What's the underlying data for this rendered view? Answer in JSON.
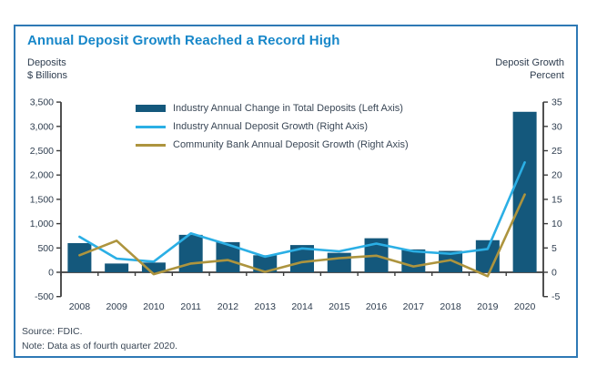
{
  "card": {
    "title": "Annual Deposit Growth Reached a Record High",
    "left_axis_title_line1": "Deposits",
    "left_axis_title_line2": "$ Billions",
    "right_axis_title_line1": "Deposit Growth",
    "right_axis_title_line2": "Percent",
    "source": "Source: FDIC.",
    "note": "Note: Data as of fourth quarter 2020."
  },
  "colors": {
    "title_blue": "#1787c9",
    "border_blue": "#2e79b5",
    "bar_dark_blue": "#14587c",
    "industry_line_blue": "#2bafe5",
    "community_line_gold": "#ad943e",
    "axis_line": "#3c3c3c",
    "tick_text": "#2e3d4f"
  },
  "chart_data": {
    "type": "combo",
    "title": "Annual Deposit Growth Reached a Record High",
    "categories": [
      "2008",
      "2009",
      "2010",
      "2011",
      "2012",
      "2013",
      "2014",
      "2015",
      "2016",
      "2017",
      "2018",
      "2019",
      "2020"
    ],
    "series": [
      {
        "name": "Industry Annual Change in Total Deposits (Left Axis)",
        "type": "bar",
        "axis": "left",
        "color": "#14587c",
        "values": [
          600,
          180,
          200,
          770,
          620,
          350,
          560,
          400,
          700,
          470,
          440,
          660,
          3300
        ]
      },
      {
        "name": "Industry Annual Deposit Growth (Right Axis)",
        "type": "line",
        "axis": "right",
        "color": "#2bafe5",
        "values": [
          7.3,
          2.8,
          2.2,
          8.0,
          5.7,
          3.2,
          4.9,
          4.3,
          5.9,
          4.3,
          3.8,
          4.8,
          22.6
        ]
      },
      {
        "name": "Community Bank Annual Deposit Growth (Right Axis)",
        "type": "line",
        "axis": "right",
        "color": "#ad943e",
        "values": [
          3.5,
          6.5,
          -0.4,
          1.8,
          2.5,
          0.1,
          2.1,
          2.9,
          3.4,
          1.2,
          2.5,
          -0.8,
          16.0
        ]
      }
    ],
    "left_axis": {
      "label": "Deposits $ Billions",
      "min": -500,
      "max": 3500,
      "step": 500
    },
    "right_axis": {
      "label": "Deposit Growth Percent",
      "min": -5,
      "max": 35,
      "step": 5
    },
    "legend_position": "top-inside",
    "grid": false
  }
}
